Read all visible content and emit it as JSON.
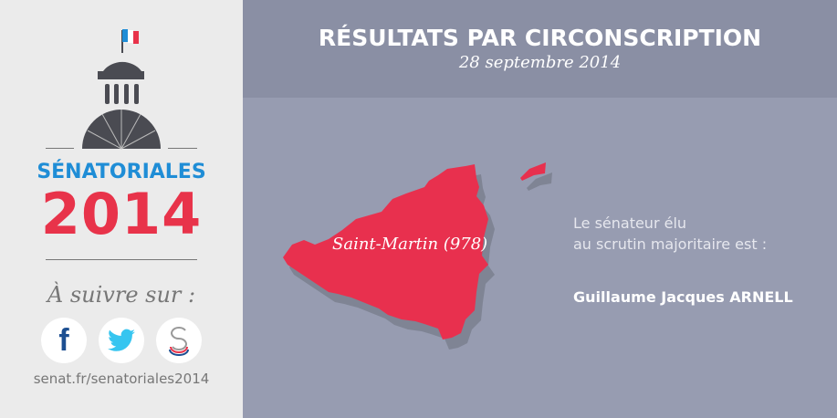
{
  "sidebar": {
    "title": "SÉNATORIALES",
    "year": "2014",
    "follow": "À suivre sur :",
    "social": [
      {
        "icon": "facebook-icon",
        "color": "#1d4f91"
      },
      {
        "icon": "twitter-icon",
        "color": "#36c5f0"
      },
      {
        "icon": "senat-icon",
        "color": "#777777"
      }
    ],
    "url": "senat.fr/senatoriales2014"
  },
  "header": {
    "title": "RÉSULTATS PAR CIRCONSCRIPTION",
    "date": "28 septembre 2014"
  },
  "map": {
    "label": "Saint-Martin (978)",
    "fill": "#e8304e"
  },
  "result": {
    "intro_line1": "Le sénateur élu",
    "intro_line2": "au scrutin majoritaire est :",
    "name": "Guillaume Jacques ARNELL"
  }
}
